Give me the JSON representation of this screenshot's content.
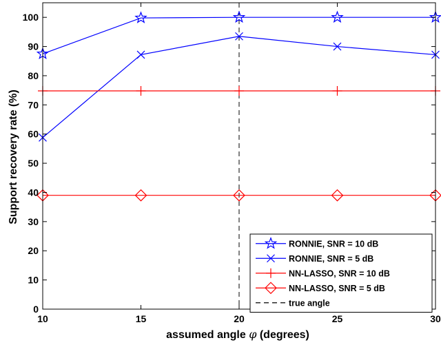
{
  "chart_data": {
    "type": "line",
    "xlabel_prefix": "assumed angle ",
    "xlabel_symbol": "φ",
    "xlabel_suffix": " (degrees)",
    "ylabel": "Support recovery rate (%)",
    "xlim": [
      10,
      30
    ],
    "ylim": [
      0,
      105
    ],
    "xticks": [
      10,
      15,
      20,
      25,
      30
    ],
    "yticks": [
      0,
      10,
      20,
      30,
      40,
      50,
      60,
      70,
      80,
      90,
      100
    ],
    "x": [
      10,
      15,
      20,
      25,
      30
    ],
    "series": [
      {
        "name": "RONNIE, SNR = 10 dB",
        "values": [
          87.5,
          99.8,
          100,
          100,
          100
        ],
        "color": "#0000ff",
        "marker": "star",
        "linestyle": "solid"
      },
      {
        "name": "RONNIE, SNR = 5 dB",
        "values": [
          58.8,
          87.2,
          93.5,
          90,
          87.2
        ],
        "color": "#0000ff",
        "marker": "x",
        "linestyle": "solid"
      },
      {
        "name": "NN-LASSO, SNR = 10 dB",
        "values": [
          74.8,
          74.8,
          74.8,
          74.8,
          74.8
        ],
        "color": "#ff0000",
        "marker": "plus",
        "linestyle": "solid"
      },
      {
        "name": "NN-LASSO, SNR = 5 dB",
        "values": [
          39,
          39,
          39,
          39,
          39
        ],
        "color": "#ff0000",
        "marker": "diamond",
        "linestyle": "solid"
      }
    ],
    "vertical_line": {
      "name": "true angle",
      "x": 20,
      "color": "#000000",
      "linestyle": "dashed"
    },
    "legend_position": "bottom-right",
    "grid": false
  }
}
